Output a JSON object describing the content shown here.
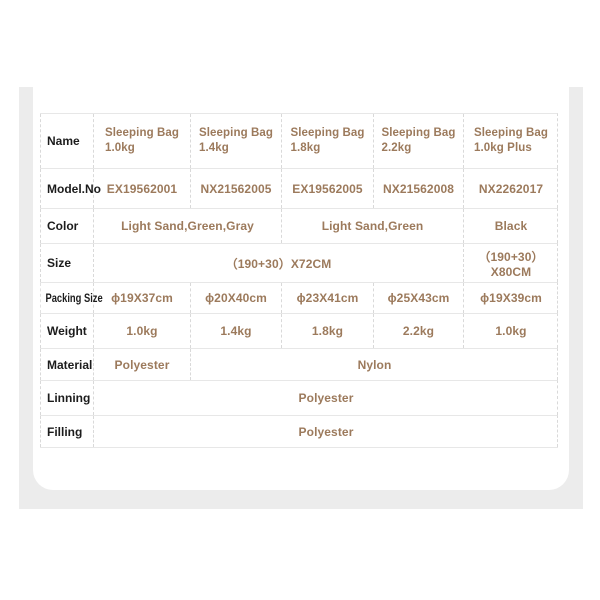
{
  "colors": {
    "accent_text": "#9c7a5c",
    "label_text": "#1c1c1c",
    "section_background": "#ececec",
    "card_background": "#ffffff",
    "row_line": "#e7e7e7",
    "column_dash_line": "#d9d9d9"
  },
  "table": {
    "row_labels": [
      "Name",
      "Model.No",
      "Color",
      "Size",
      "Packing Size",
      "Weight",
      "Material",
      "Linning",
      "Filling"
    ],
    "products": [
      {
        "name": "Sleeping Bag",
        "variant": "1.0kg",
        "model": "EX19562001",
        "packing_size": "ϕ19X37cm",
        "weight": "1.0kg"
      },
      {
        "name": "Sleeping Bag",
        "variant": "1.4kg",
        "model": "NX21562005",
        "packing_size": "ϕ20X40cm",
        "weight": "1.4kg"
      },
      {
        "name": "Sleeping Bag",
        "variant": "1.8kg",
        "model": "EX19562005",
        "packing_size": "ϕ23X41cm",
        "weight": "1.8kg"
      },
      {
        "name": "Sleeping Bag",
        "variant": "2.2kg",
        "model": "NX21562008",
        "packing_size": "ϕ25X43cm",
        "weight": "2.2kg"
      },
      {
        "name": "Sleeping Bag",
        "variant": "1.0kg Plus",
        "model": "NX2262017",
        "packing_size": "ϕ19X39cm",
        "weight": "1.0kg"
      }
    ],
    "color_row": {
      "cols_1_2": "Light Sand,Green,Gray",
      "cols_3_4": "Light Sand,Green",
      "col_5": "Black"
    },
    "size_row": {
      "cols_1_4": "（190+30）X72CM",
      "col_5": "（190+30）X80CM"
    },
    "material_row": {
      "col_1": "Polyester",
      "cols_2_5": "Nylon"
    },
    "linning_row": {
      "value": "Polyester"
    },
    "filling_row": {
      "value": "Polyester"
    }
  }
}
